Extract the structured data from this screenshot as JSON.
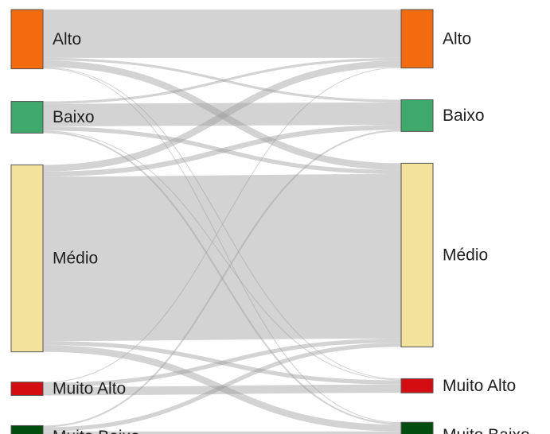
{
  "chart_data": {
    "type": "sankey",
    "nodes_left": [
      {
        "id": "alto",
        "label": "Alto",
        "color": "#f26b0f"
      },
      {
        "id": "baixo",
        "label": "Baixo",
        "color": "#3fa86b"
      },
      {
        "id": "medio",
        "label": "Médio",
        "color": "#f2e29c"
      },
      {
        "id": "muito_alto",
        "label": "Muito Alto",
        "color": "#d40d12"
      },
      {
        "id": "muito_baixo",
        "label": "Muito Baixo",
        "color": "#004d10"
      }
    ],
    "nodes_right": [
      {
        "id": "alto",
        "label": "Alto",
        "color": "#f26b0f"
      },
      {
        "id": "baixo",
        "label": "Baixo",
        "color": "#3fa86b"
      },
      {
        "id": "medio",
        "label": "Médio",
        "color": "#f2e29c"
      },
      {
        "id": "muito_alto",
        "label": "Muito Alto",
        "color": "#d40d12"
      },
      {
        "id": "muito_baixo",
        "label": "Muito Baixo",
        "color": "#004d10"
      }
    ],
    "links": [
      {
        "source": "alto",
        "target": "alto",
        "value": 58
      },
      {
        "source": "alto",
        "target": "baixo",
        "value": 3
      },
      {
        "source": "alto",
        "target": "medio",
        "value": 8
      },
      {
        "source": "alto",
        "target": "muito_alto",
        "value": 1
      },
      {
        "source": "alto",
        "target": "muito_baixo",
        "value": 1
      },
      {
        "source": "baixo",
        "target": "alto",
        "value": 3
      },
      {
        "source": "baixo",
        "target": "baixo",
        "value": 27
      },
      {
        "source": "baixo",
        "target": "medio",
        "value": 5
      },
      {
        "source": "baixo",
        "target": "muito_alto",
        "value": 1
      },
      {
        "source": "baixo",
        "target": "muito_baixo",
        "value": 2
      },
      {
        "source": "medio",
        "target": "alto",
        "value": 8
      },
      {
        "source": "medio",
        "target": "baixo",
        "value": 6
      },
      {
        "source": "medio",
        "target": "medio",
        "value": 197
      },
      {
        "source": "medio",
        "target": "muito_alto",
        "value": 5
      },
      {
        "source": "medio",
        "target": "muito_baixo",
        "value": 8
      },
      {
        "source": "muito_alto",
        "target": "alto",
        "value": 1
      },
      {
        "source": "muito_alto",
        "target": "medio",
        "value": 5
      },
      {
        "source": "muito_alto",
        "target": "muito_alto",
        "value": 10
      },
      {
        "source": "muito_baixo",
        "target": "baixo",
        "value": 2
      },
      {
        "source": "muito_baixo",
        "target": "medio",
        "value": 5
      },
      {
        "source": "muito_baixo",
        "target": "muito_baixo",
        "value": 20
      }
    ],
    "title": "",
    "legend": "none"
  }
}
